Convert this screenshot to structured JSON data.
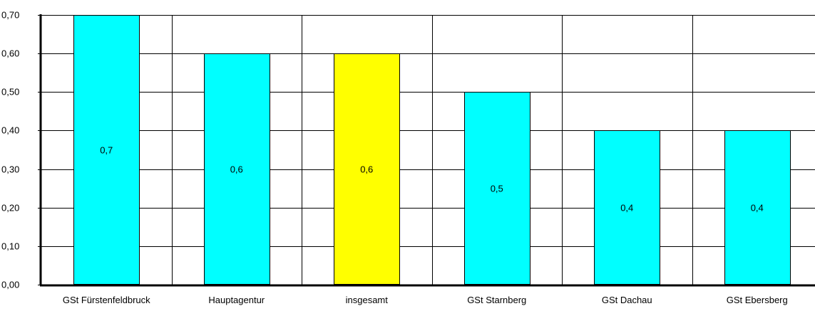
{
  "chart_data": {
    "type": "bar",
    "title": "",
    "xlabel": "",
    "ylabel": "",
    "categories": [
      "GSt Fürstenfeldbruck",
      "Hauptagentur",
      "insgesamt",
      "GSt Starnberg",
      "GSt Dachau",
      "GSt Ebersberg"
    ],
    "values": [
      0.7,
      0.6,
      0.6,
      0.5,
      0.4,
      0.4
    ],
    "value_labels": [
      "0,7",
      "0,6",
      "0,6",
      "0,5",
      "0,4",
      "0,4"
    ],
    "y_ticks": [
      0.0,
      0.1,
      0.2,
      0.3,
      0.4,
      0.5,
      0.6,
      0.7
    ],
    "y_tick_labels": [
      "0,00",
      "0,10",
      "0,20",
      "0,30",
      "0,40",
      "0,50",
      "0,60",
      "0,70"
    ],
    "ylim": [
      0,
      0.7
    ],
    "grid": true,
    "legend": "none",
    "colors": {
      "bar": "#00ffff",
      "highlight_bar": "#ffff00",
      "bar_border": "#000000",
      "grid": "#000000",
      "axis": "#000000"
    },
    "highlight_index": 2
  }
}
